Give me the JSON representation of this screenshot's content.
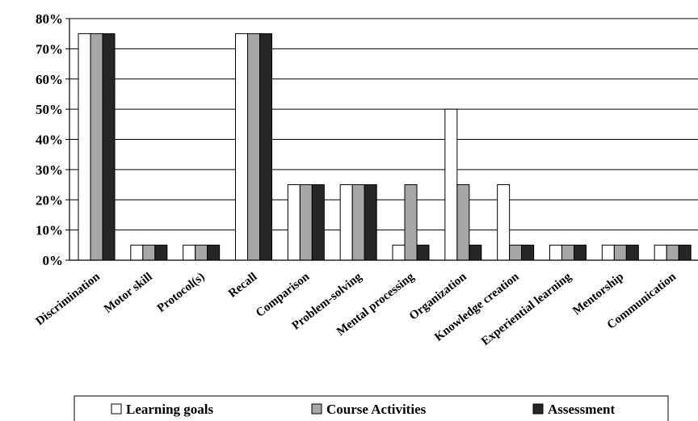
{
  "chart_data": {
    "type": "bar",
    "categories": [
      "Discrimination",
      "Motor skill",
      "Protocol(s)",
      "Recall",
      "Comparison",
      "Problem-solving",
      "Mental processing",
      "Organization",
      "Knowledge creation",
      "Experiential learning",
      "Mentorship",
      "Communication"
    ],
    "series": [
      {
        "name": "Learning goals",
        "color": "#ffffff",
        "values": [
          75,
          5,
          5,
          75,
          25,
          25,
          5,
          50,
          25,
          5,
          5,
          5
        ]
      },
      {
        "name": "Course Activities",
        "color": "#a6a6a6",
        "values": [
          75,
          5,
          5,
          75,
          25,
          25,
          25,
          25,
          5,
          5,
          5,
          5
        ]
      },
      {
        "name": "Assessment",
        "color": "#262626",
        "values": [
          75,
          5,
          5,
          75,
          25,
          25,
          5,
          5,
          5,
          5,
          5,
          5
        ]
      }
    ],
    "yticks": [
      "0%",
      "10%",
      "20%",
      "30%",
      "40%",
      "50%",
      "60%",
      "70%",
      "80%"
    ],
    "ylim": [
      0,
      80
    ],
    "grid": true,
    "legend_position": "bottom"
  }
}
